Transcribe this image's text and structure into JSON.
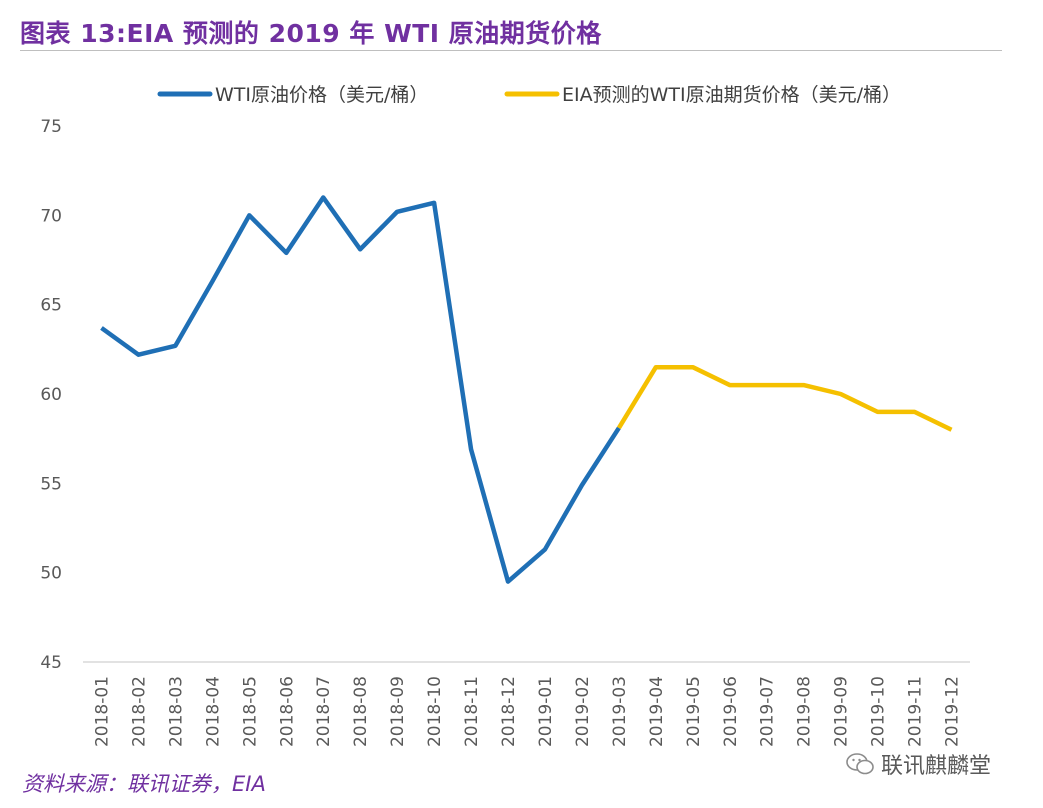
{
  "title": "图表 13:EIA 预测的 2019 年 WTI 原油期货价格",
  "source": "资料来源：联讯证券，EIA",
  "watermark": "联讯麒麟堂",
  "chart_data": {
    "type": "line",
    "categories": [
      "2018-01",
      "2018-02",
      "2018-03",
      "2018-04",
      "2018-05",
      "2018-06",
      "2018-07",
      "2018-08",
      "2018-09",
      "2018-10",
      "2018-11",
      "2018-12",
      "2019-01",
      "2019-02",
      "2019-03",
      "2019-04",
      "2019-05",
      "2019-06",
      "2019-07",
      "2019-08",
      "2019-09",
      "2019-10",
      "2019-11",
      "2019-12"
    ],
    "series": [
      {
        "name": "WTI原油价格（美元/桶）",
        "color": "#1F6FB5",
        "values": [
          63.7,
          62.2,
          62.7,
          66.3,
          70.0,
          67.9,
          71.0,
          68.1,
          70.2,
          70.7,
          56.9,
          49.5,
          51.3,
          54.9,
          58.1,
          null,
          null,
          null,
          null,
          null,
          null,
          null,
          null,
          null
        ]
      },
      {
        "name": "EIA预测的WTI原油期货价格（美元/桶）",
        "color": "#F5C000",
        "values": [
          null,
          null,
          null,
          null,
          null,
          null,
          null,
          null,
          null,
          null,
          null,
          null,
          null,
          null,
          58.1,
          61.5,
          61.5,
          60.5,
          60.5,
          60.5,
          60.0,
          59.0,
          59.0,
          58.0
        ]
      }
    ],
    "ylim": [
      45,
      75
    ],
    "yticks": [
      45,
      50,
      55,
      60,
      65,
      70,
      75
    ],
    "xlabel": "",
    "ylabel": "",
    "grid": false,
    "legend_position": "top"
  }
}
